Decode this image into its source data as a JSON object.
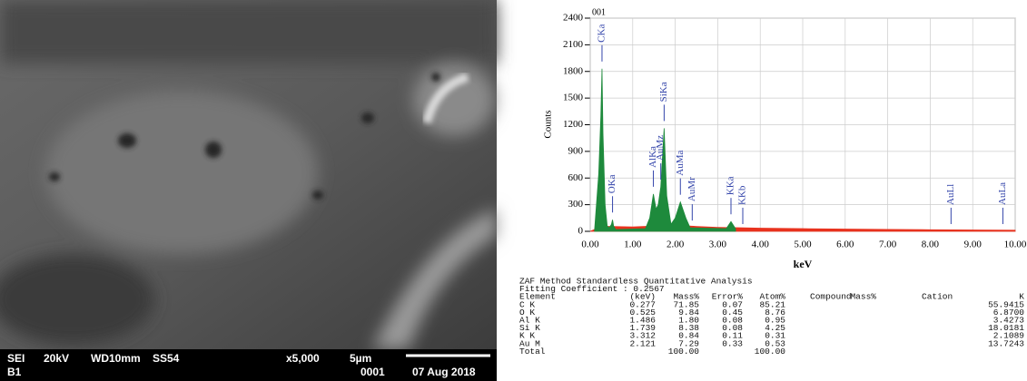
{
  "chart_data": {
    "type": "area",
    "title": "001",
    "ylabel": "Counts",
    "xlabel": "keV",
    "series": [
      {
        "color": "#e8321e",
        "x": [
          0,
          0.1,
          0.2,
          0.5,
          1,
          1.5,
          2,
          2.5,
          3,
          3.5,
          4,
          5,
          6,
          7,
          8,
          9,
          10
        ],
        "values": [
          0,
          20,
          60,
          55,
          50,
          60,
          70,
          55,
          45,
          40,
          35,
          30,
          25,
          22,
          18,
          15,
          12
        ]
      },
      {
        "color": "#1e8a3c",
        "x": [
          0.1,
          0.2,
          0.25,
          0.277,
          0.3,
          0.35,
          0.4,
          0.45,
          0.5,
          0.525,
          0.55,
          0.6,
          1.3,
          1.4,
          1.486,
          1.55,
          1.6,
          1.66,
          1.739,
          1.8,
          1.9,
          2.0,
          2.121,
          2.25,
          2.35,
          3.2,
          3.312,
          3.42
        ],
        "values": [
          0,
          650,
          1300,
          1830,
          1100,
          300,
          60,
          40,
          80,
          130,
          60,
          20,
          30,
          150,
          420,
          250,
          300,
          500,
          1160,
          400,
          80,
          150,
          330,
          150,
          40,
          30,
          110,
          30
        ]
      }
    ],
    "annotations": [
      {
        "text": "CKa",
        "x": 0.277
      },
      {
        "text": "OKa",
        "x": 0.525
      },
      {
        "text": "AlKa",
        "x": 1.486
      },
      {
        "text": "AuMz",
        "x": 1.66
      },
      {
        "text": "SiKa",
        "x": 1.739
      },
      {
        "text": "AuMa",
        "x": 2.121
      },
      {
        "text": "AuMr",
        "x": 2.4
      },
      {
        "text": "KKa",
        "x": 3.312
      },
      {
        "text": "KKb",
        "x": 3.59
      },
      {
        "text": "AuLl",
        "x": 8.49
      },
      {
        "text": "AuLa",
        "x": 9.71
      }
    ],
    "xlim": [
      0,
      10
    ],
    "xticks": [
      {
        "value": 0,
        "label": "0.00"
      },
      {
        "value": 1,
        "label": "1.00"
      },
      {
        "value": 2,
        "label": "2.00"
      },
      {
        "value": 3,
        "label": "3.00"
      },
      {
        "value": 4,
        "label": "4.00"
      },
      {
        "value": 5,
        "label": "5.00"
      },
      {
        "value": 6,
        "label": "6.00"
      },
      {
        "value": 7,
        "label": "7.00"
      },
      {
        "value": 8,
        "label": "8.00"
      },
      {
        "value": 9,
        "label": "9.00"
      },
      {
        "value": 10,
        "label": "10.00"
      }
    ],
    "ylim": [
      0,
      2400
    ],
    "yticks": [
      0,
      300,
      600,
      900,
      1200,
      1500,
      1800,
      2100,
      2400
    ],
    "grid": true
  },
  "sem_bar": {
    "items": [
      "SEI",
      "20kV",
      "WD10mm",
      "SS54",
      "x5,000",
      "5µm",
      "B1",
      "0001",
      "07 Aug 2018"
    ]
  },
  "table": {
    "method": "ZAF Method Standardless Quantitative Analysis",
    "fitting": "Fitting Coefficient : 0.2567",
    "header": [
      "Element",
      "(keV)",
      "Mass%",
      "Error%",
      "Atom%",
      "Compound",
      "Mass%",
      "Cation",
      "K"
    ],
    "rows": [
      [
        "C K",
        "0.277",
        "71.85",
        "0.07",
        "85.21",
        "55.9415"
      ],
      [
        "O K",
        "0.525",
        "9.84",
        "0.45",
        "8.76",
        "6.8700"
      ],
      [
        "Al K",
        "1.486",
        "1.80",
        "0.08",
        "0.95",
        "3.4273"
      ],
      [
        "Si K",
        "1.739",
        "8.38",
        "0.08",
        "4.25",
        "18.0181"
      ],
      [
        "K K",
        "3.312",
        "0.84",
        "0.11",
        "0.31",
        "2.1089"
      ],
      [
        "Au M",
        "2.121",
        "7.29",
        "0.33",
        "0.53",
        "13.7243"
      ]
    ],
    "total": [
      "Total",
      "100.00",
      "100.00"
    ]
  }
}
